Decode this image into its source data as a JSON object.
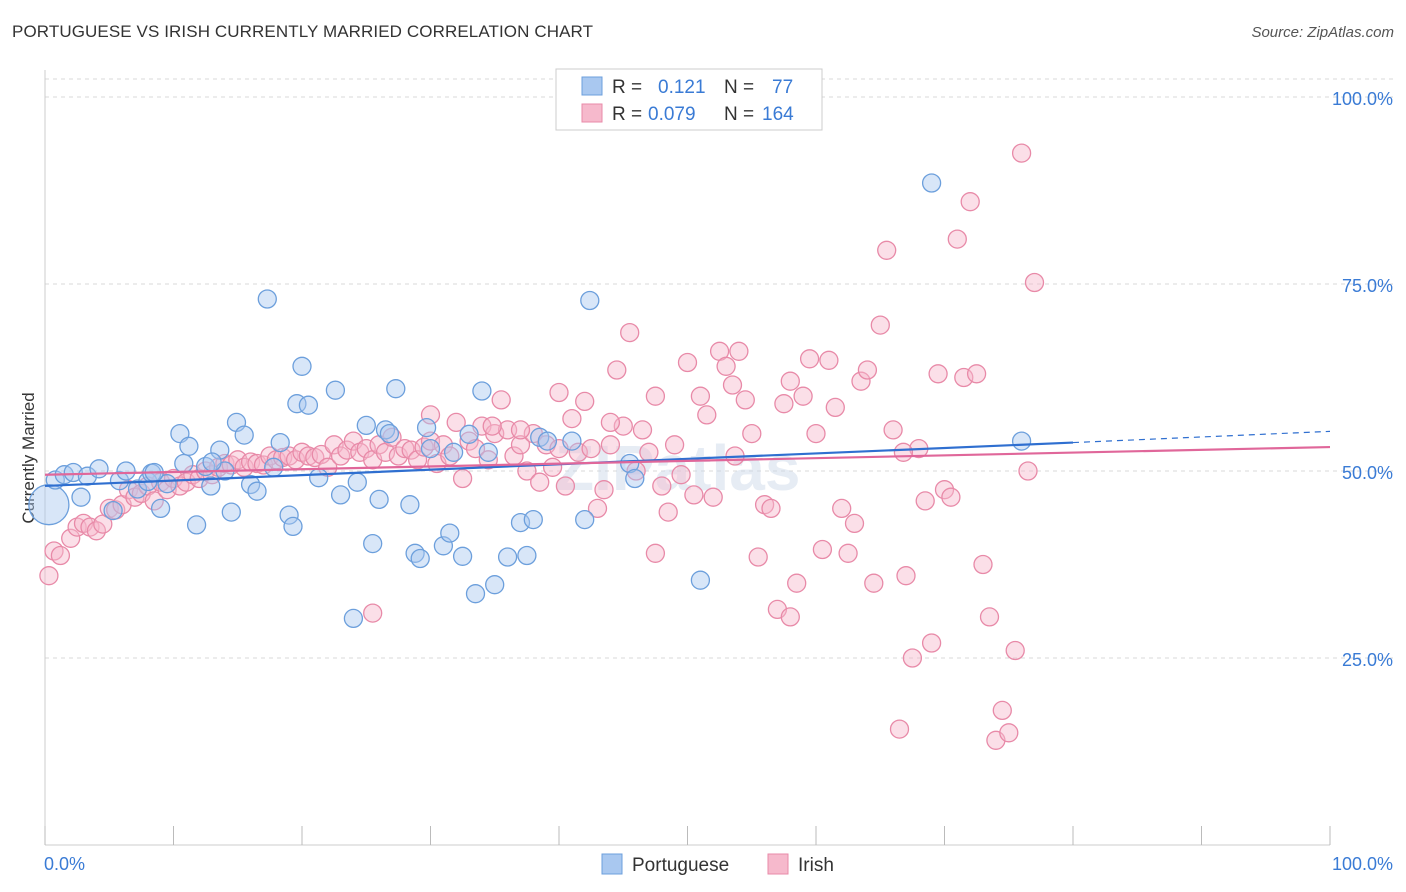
{
  "title": "PORTUGUESE VS IRISH CURRENTLY MARRIED CORRELATION CHART",
  "source": "Source: ZipAtlas.com",
  "watermark": "ZIPatlas",
  "colors": {
    "portuguese_fill": "#a9c8f0",
    "portuguese_stroke": "#6c9fdc",
    "portuguese_line": "#2f6fd0",
    "irish_fill": "#f6b9cc",
    "irish_stroke": "#e88aa8",
    "irish_line": "#e0679a",
    "value_text": "#3a7bd5",
    "grid": "#d8d8d8"
  },
  "stats": {
    "portuguese": {
      "r_label": "R =",
      "r_value": "0.121",
      "n_label": "N =",
      "n_value": "77"
    },
    "irish": {
      "r_label": "R =",
      "r_value": "0.079",
      "n_label": "N =",
      "n_value": "164"
    }
  },
  "chart_data": {
    "type": "scatter",
    "xlabel": "",
    "ylabel": "Currently Married",
    "xlim": [
      0,
      100
    ],
    "ylim": [
      0,
      105
    ],
    "x_tick_labels": [
      "0.0%",
      "100.0%"
    ],
    "y_ticks": [
      {
        "value": 25,
        "label": "25.0%"
      },
      {
        "value": 50,
        "label": "50.0%"
      },
      {
        "value": 75,
        "label": "75.0%"
      },
      {
        "value": 100,
        "label": "100.0%"
      }
    ],
    "grid": "horizontal dashed",
    "legend_position": "bottom-center",
    "series": [
      {
        "name": "Portuguese",
        "trend": {
          "x": [
            0,
            80
          ],
          "y": [
            48.0,
            53.8
          ],
          "dashed_to": [
            100,
            55.3
          ]
        },
        "points": [
          [
            0.3,
            45.5
          ],
          [
            0.8,
            48.8
          ],
          [
            1.5,
            49.5
          ],
          [
            2.2,
            49.8
          ],
          [
            2.8,
            46.5
          ],
          [
            3.3,
            49.3
          ],
          [
            4.2,
            50.3
          ],
          [
            5.3,
            44.7
          ],
          [
            5.8,
            48.7
          ],
          [
            6.3,
            50.0
          ],
          [
            7.2,
            47.6
          ],
          [
            8.0,
            48.6
          ],
          [
            8.3,
            49.7
          ],
          [
            9.0,
            45.0
          ],
          [
            9.5,
            48.3
          ],
          [
            10.5,
            55.0
          ],
          [
            10.8,
            51.0
          ],
          [
            11.2,
            53.3
          ],
          [
            11.8,
            42.8
          ],
          [
            12.5,
            50.6
          ],
          [
            12.9,
            48.0
          ],
          [
            13.6,
            52.8
          ],
          [
            14.0,
            50.0
          ],
          [
            14.5,
            44.5
          ],
          [
            14.9,
            56.5
          ],
          [
            15.5,
            54.8
          ],
          [
            16.0,
            48.2
          ],
          [
            16.5,
            47.3
          ],
          [
            17.3,
            73.0
          ],
          [
            18.3,
            53.8
          ],
          [
            19.0,
            44.1
          ],
          [
            19.3,
            42.6
          ],
          [
            20.0,
            64.0
          ],
          [
            19.6,
            59.0
          ],
          [
            20.5,
            58.8
          ],
          [
            21.3,
            49.1
          ],
          [
            22.6,
            60.8
          ],
          [
            23.0,
            46.8
          ],
          [
            24.3,
            48.5
          ],
          [
            25.0,
            56.1
          ],
          [
            25.5,
            40.3
          ],
          [
            26.0,
            46.2
          ],
          [
            27.3,
            61.0
          ],
          [
            26.5,
            55.5
          ],
          [
            28.4,
            45.5
          ],
          [
            28.8,
            39.0
          ],
          [
            29.2,
            38.3
          ],
          [
            29.7,
            55.8
          ],
          [
            31.0,
            40.0
          ],
          [
            31.5,
            41.7
          ],
          [
            31.8,
            52.5
          ],
          [
            32.5,
            38.6
          ],
          [
            33.0,
            54.9
          ],
          [
            33.5,
            33.6
          ],
          [
            34.0,
            60.7
          ],
          [
            35.0,
            34.8
          ],
          [
            36.0,
            38.5
          ],
          [
            37.0,
            43.1
          ],
          [
            37.5,
            38.7
          ],
          [
            38.0,
            43.5
          ],
          [
            38.5,
            54.5
          ],
          [
            39.1,
            54.0
          ],
          [
            41.0,
            54.0
          ],
          [
            42.0,
            43.5
          ],
          [
            42.4,
            72.8
          ],
          [
            45.5,
            51.0
          ],
          [
            45.9,
            49.0
          ],
          [
            51.0,
            35.4
          ],
          [
            69.0,
            88.5
          ],
          [
            76.0,
            54.0
          ],
          [
            24.0,
            30.3
          ],
          [
            34.5,
            52.5
          ],
          [
            13.0,
            51.2
          ],
          [
            8.5,
            49.8
          ],
          [
            17.8,
            50.5
          ],
          [
            30.0,
            53.0
          ],
          [
            26.8,
            55.0
          ]
        ]
      },
      {
        "name": "Irish",
        "trend": {
          "x": [
            0,
            100
          ],
          "y": [
            49.5,
            53.2
          ]
        },
        "points": [
          [
            0.3,
            36.0
          ],
          [
            0.7,
            39.3
          ],
          [
            1.2,
            38.7
          ],
          [
            2.0,
            41.0
          ],
          [
            2.5,
            42.5
          ],
          [
            3.0,
            43.0
          ],
          [
            3.5,
            42.5
          ],
          [
            4.0,
            42.0
          ],
          [
            4.5,
            42.9
          ],
          [
            5.0,
            45.0
          ],
          [
            5.5,
            44.8
          ],
          [
            6.0,
            45.5
          ],
          [
            6.5,
            47.5
          ],
          [
            7.0,
            46.5
          ],
          [
            7.5,
            47.0
          ],
          [
            8.0,
            48.0
          ],
          [
            8.5,
            46.0
          ],
          [
            9.0,
            48.5
          ],
          [
            9.5,
            47.5
          ],
          [
            10.0,
            49.0
          ],
          [
            10.5,
            48.0
          ],
          [
            11.0,
            48.5
          ],
          [
            11.5,
            49.5
          ],
          [
            12.0,
            49.0
          ],
          [
            12.5,
            50.0
          ],
          [
            13.0,
            49.5
          ],
          [
            13.5,
            50.5
          ],
          [
            14.0,
            51.0
          ],
          [
            14.5,
            50.8
          ],
          [
            15.0,
            51.5
          ],
          [
            15.5,
            50.5
          ],
          [
            16.0,
            51.2
          ],
          [
            16.5,
            51.0
          ],
          [
            17.0,
            50.8
          ],
          [
            17.5,
            52.0
          ],
          [
            18.0,
            51.5
          ],
          [
            18.5,
            51.8
          ],
          [
            19.0,
            52.0
          ],
          [
            19.5,
            51.5
          ],
          [
            20.0,
            52.5
          ],
          [
            20.5,
            52.0
          ],
          [
            21.0,
            51.8
          ],
          [
            21.5,
            52.2
          ],
          [
            22.0,
            50.5
          ],
          [
            22.5,
            53.5
          ],
          [
            23.0,
            52.0
          ],
          [
            23.5,
            52.8
          ],
          [
            24.0,
            54.0
          ],
          [
            24.5,
            52.5
          ],
          [
            25.0,
            53.0
          ],
          [
            25.5,
            51.5
          ],
          [
            26.0,
            53.5
          ],
          [
            26.5,
            52.5
          ],
          [
            27.0,
            54.5
          ],
          [
            27.5,
            52.0
          ],
          [
            28.0,
            53.0
          ],
          [
            28.5,
            52.8
          ],
          [
            29.0,
            51.5
          ],
          [
            29.5,
            53.2
          ],
          [
            30.0,
            54.0
          ],
          [
            30.5,
            51.0
          ],
          [
            31.0,
            53.5
          ],
          [
            31.5,
            52.0
          ],
          [
            32.0,
            56.5
          ],
          [
            32.5,
            49.0
          ],
          [
            33.0,
            54.0
          ],
          [
            33.5,
            53.0
          ],
          [
            34.0,
            56.0
          ],
          [
            34.5,
            51.5
          ],
          [
            35.0,
            55.0
          ],
          [
            35.5,
            59.5
          ],
          [
            36.0,
            55.5
          ],
          [
            36.5,
            52.0
          ],
          [
            37.0,
            53.5
          ],
          [
            37.5,
            50.0
          ],
          [
            38.0,
            55.0
          ],
          [
            38.5,
            48.5
          ],
          [
            39.0,
            53.5
          ],
          [
            39.5,
            50.5
          ],
          [
            40.0,
            60.5
          ],
          [
            40.5,
            48.0
          ],
          [
            41.0,
            57.0
          ],
          [
            41.5,
            52.5
          ],
          [
            42.0,
            59.3
          ],
          [
            42.5,
            53.0
          ],
          [
            43.0,
            45.0
          ],
          [
            43.5,
            47.5
          ],
          [
            44.0,
            53.5
          ],
          [
            44.5,
            63.5
          ],
          [
            45.0,
            56.0
          ],
          [
            45.5,
            68.5
          ],
          [
            46.0,
            50.0
          ],
          [
            46.5,
            55.5
          ],
          [
            47.0,
            52.5
          ],
          [
            47.5,
            39.0
          ],
          [
            48.0,
            48.0
          ],
          [
            48.5,
            44.5
          ],
          [
            49.0,
            53.5
          ],
          [
            49.5,
            49.5
          ],
          [
            50.0,
            64.5
          ],
          [
            50.5,
            46.8
          ],
          [
            51.0,
            60.0
          ],
          [
            51.5,
            57.5
          ],
          [
            52.0,
            46.5
          ],
          [
            52.5,
            66.0
          ],
          [
            53.0,
            64.0
          ],
          [
            53.5,
            61.5
          ],
          [
            54.0,
            66.0
          ],
          [
            54.5,
            59.5
          ],
          [
            55.0,
            55.0
          ],
          [
            55.5,
            38.5
          ],
          [
            56.0,
            45.5
          ],
          [
            56.5,
            45.0
          ],
          [
            57.0,
            31.5
          ],
          [
            57.5,
            59.0
          ],
          [
            58.0,
            62.0
          ],
          [
            58.5,
            35.0
          ],
          [
            59.0,
            60.0
          ],
          [
            59.5,
            65.0
          ],
          [
            60.0,
            55.0
          ],
          [
            60.5,
            39.5
          ],
          [
            61.0,
            64.8
          ],
          [
            61.5,
            58.5
          ],
          [
            62.0,
            45.0
          ],
          [
            62.5,
            39.0
          ],
          [
            63.0,
            43.0
          ],
          [
            63.5,
            62.0
          ],
          [
            64.0,
            63.5
          ],
          [
            64.5,
            35.0
          ],
          [
            65.0,
            69.5
          ],
          [
            65.5,
            79.5
          ],
          [
            66.0,
            55.5
          ],
          [
            66.5,
            15.5
          ],
          [
            67.0,
            36.0
          ],
          [
            67.5,
            25.0
          ],
          [
            68.0,
            53.0
          ],
          [
            68.5,
            46.0
          ],
          [
            69.0,
            27.0
          ],
          [
            69.5,
            63.0
          ],
          [
            70.0,
            47.5
          ],
          [
            70.5,
            46.5
          ],
          [
            71.0,
            81.0
          ],
          [
            71.5,
            62.5
          ],
          [
            72.0,
            86.0
          ],
          [
            72.5,
            63.0
          ],
          [
            73.0,
            37.5
          ],
          [
            73.5,
            30.5
          ],
          [
            74.0,
            14.0
          ],
          [
            74.5,
            18.0
          ],
          [
            75.0,
            15.0
          ],
          [
            75.5,
            26.0
          ],
          [
            76.0,
            92.5
          ],
          [
            76.5,
            50.0
          ],
          [
            77.0,
            75.2
          ],
          [
            25.5,
            31.0
          ],
          [
            30.0,
            57.5
          ],
          [
            44.0,
            56.5
          ],
          [
            47.5,
            60.0
          ],
          [
            34.8,
            56.0
          ],
          [
            40.0,
            53.0
          ],
          [
            37.0,
            55.5
          ],
          [
            53.7,
            52.0
          ],
          [
            58.0,
            30.5
          ],
          [
            66.8,
            52.5
          ]
        ]
      }
    ]
  }
}
